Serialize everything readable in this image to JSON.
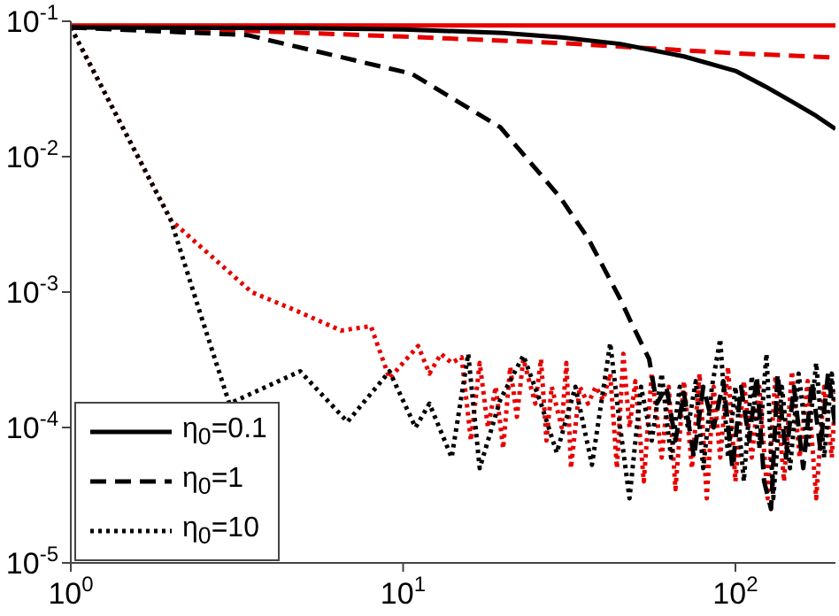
{
  "chart_data": {
    "type": "line",
    "log": "xy",
    "grid": false,
    "marker": "none",
    "legend": "bottom left",
    "xlim": [
      1,
      200
    ],
    "ylim": [
      1e-05,
      0.1
    ],
    "xticks": [
      {
        "value": 1,
        "label": "10$^{0}$"
      },
      {
        "value": 10,
        "label": "10$^{1}$"
      },
      {
        "value": 100,
        "label": "10$^{2}$"
      }
    ],
    "yticks": [
      {
        "value": 1e-05,
        "label": "10$^{-5}$"
      },
      {
        "value": 0.0001,
        "label": "10$^{-4}$"
      },
      {
        "value": 0.001,
        "label": "10$^{-3}$"
      },
      {
        "value": 0.01,
        "label": "10$^{-2}$"
      },
      {
        "value": 0.1,
        "label": "10$^{-1}$"
      }
    ],
    "series": [
      {
        "color": "#e60000",
        "line_style": "solid",
        "x": [
          1,
          200
        ],
        "values": [
          0.093,
          0.093
        ]
      },
      {
        "color": "#e60000",
        "line_style": "dashed",
        "x": [
          1,
          3,
          10,
          30,
          50,
          100,
          200
        ],
        "values": [
          0.09,
          0.086,
          0.077,
          0.069,
          0.064,
          0.058,
          0.054
        ]
      },
      {
        "color": "#e60000",
        "line_style": "dotted",
        "x": [
          1,
          2,
          3.5,
          4.7,
          6.5,
          8,
          9.1,
          10,
          11.1,
          12,
          13,
          14,
          15,
          16,
          17,
          18,
          19,
          20,
          21,
          22,
          23,
          25,
          26,
          27,
          28,
          30,
          31,
          32,
          34,
          36,
          38,
          40,
          42,
          44,
          46,
          48,
          50,
          53,
          56,
          60,
          63,
          66,
          70,
          74,
          78,
          82,
          86,
          90,
          95,
          100,
          106,
          112,
          118,
          125,
          132,
          140,
          148,
          156,
          165,
          175,
          185,
          195,
          200
        ],
        "values": [
          0.09,
          0.0034,
          0.001,
          0.00074,
          0.00052,
          0.00056,
          0.00023,
          0.0003,
          0.0004,
          0.00025,
          0.00035,
          0.0003,
          0.00033,
          8e-05,
          0.0003,
          0.0001,
          0.0002,
          7e-05,
          0.00028,
          0.00012,
          0.00032,
          0.00015,
          0.00032,
          8e-05,
          0.0002,
          0.0001,
          0.0003,
          5e-05,
          0.0002,
          0.00015,
          0.0002,
          0.00016,
          0.00025,
          5e-05,
          0.00035,
          0.0001,
          0.00022,
          4e-05,
          0.00025,
          6e-05,
          0.0002,
          3.5e-05,
          0.00022,
          5e-05,
          0.00025,
          3e-05,
          0.0002,
          6e-05,
          0.00028,
          4e-05,
          0.00022,
          6e-05,
          0.0002,
          3e-05,
          0.00024,
          4e-05,
          0.00026,
          6e-05,
          0.00022,
          3e-05,
          0.0002,
          6e-05,
          0.00018
        ]
      },
      {
        "name": "η$_{0}$=0.1",
        "color": "#000000",
        "line_style": "solid",
        "x": [
          1,
          5,
          10,
          20,
          30,
          45,
          70,
          100,
          123,
          150,
          175,
          200
        ],
        "values": [
          0.09,
          0.089,
          0.087,
          0.082,
          0.076,
          0.068,
          0.055,
          0.043,
          0.033,
          0.025,
          0.02,
          0.016
        ]
      },
      {
        "name": "η$_{0}$=1",
        "color": "#000000",
        "line_style": "dashed",
        "x": [
          1,
          3.4,
          10.6,
          19.6,
          29.7,
          36,
          45,
          48.5,
          55,
          58,
          62,
          66,
          70,
          75,
          80,
          86,
          92,
          98,
          104,
          110,
          116,
          122,
          128,
          134,
          142,
          150,
          160,
          170,
          180,
          190,
          200
        ],
        "values": [
          0.09,
          0.079,
          0.041,
          0.0165,
          0.005,
          0.0025,
          0.00089,
          0.0006,
          0.00032,
          0.00015,
          0.0002,
          8e-05,
          0.00018,
          6e-05,
          0.0002,
          0.0001,
          0.00022,
          5e-05,
          0.0002,
          8e-05,
          0.00024,
          4e-05,
          2.5e-05,
          0.00025,
          6e-05,
          0.0002,
          5e-05,
          0.00022,
          7e-05,
          0.00025,
          0.0001
        ]
      },
      {
        "name": "η$_{0}$=10",
        "color": "#000000",
        "line_style": "dotted",
        "x": [
          1,
          2,
          2.45,
          3,
          4.9,
          6.8,
          9.1,
          10.9,
          12,
          14,
          15.7,
          17,
          19.6,
          23,
          26,
          29,
          33,
          37,
          42,
          45,
          48,
          52,
          56,
          60,
          64,
          68,
          72,
          76,
          80,
          85,
          90,
          95,
          100,
          106,
          112,
          118,
          124,
          130,
          138,
          146,
          155,
          165,
          175,
          185,
          195,
          200
        ],
        "values": [
          0.09,
          0.0034,
          0.0007,
          0.00015,
          0.00026,
          0.00011,
          0.00026,
          0.0001,
          0.00015,
          6e-05,
          0.00035,
          5e-05,
          0.00016,
          0.00034,
          0.00015,
          6.5e-05,
          0.0002,
          5.3e-05,
          0.00042,
          0.0001,
          3e-05,
          0.0002,
          8e-05,
          0.00025,
          6e-05,
          0.0002,
          0.0001,
          0.00022,
          5e-05,
          0.0002,
          0.00045,
          6e-05,
          0.0002,
          4e-05,
          0.00024,
          7e-05,
          0.00035,
          3e-05,
          0.0002,
          5e-05,
          0.00025,
          7e-05,
          0.0003,
          6e-05,
          0.00025,
          0.0001
        ]
      }
    ]
  }
}
